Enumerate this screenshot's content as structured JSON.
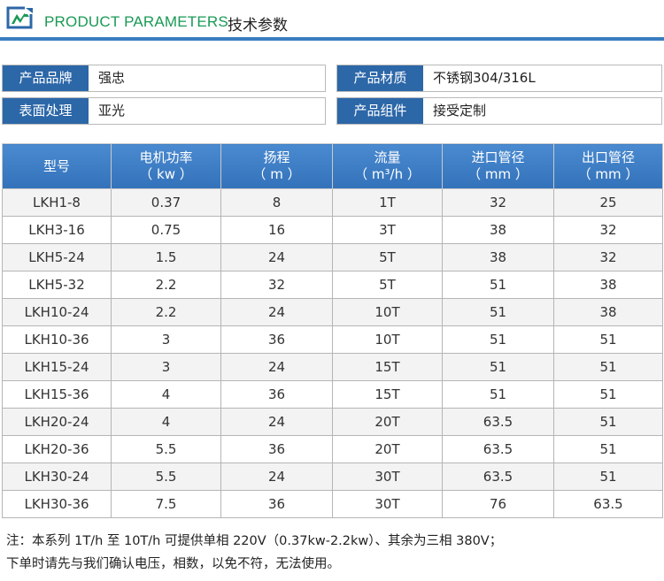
{
  "header": {
    "title_en": "PRODUCT PARAMETERS",
    "title_cn": "技术参数",
    "accent_color": "#1a9a55",
    "rule_color": "#3a7dc0"
  },
  "attributes": [
    {
      "label": "产品品牌",
      "value": "强忠"
    },
    {
      "label": "产品材质",
      "value": "不锈钢304/316L"
    },
    {
      "label": "表面处理",
      "value": "亚光"
    },
    {
      "label": "产品组件",
      "value": "接受定制"
    }
  ],
  "table": {
    "headers": [
      {
        "line1": "型号",
        "line2": ""
      },
      {
        "line1": "电机功率",
        "line2": "（ kw ）"
      },
      {
        "line1": "扬程",
        "line2": "（ m ）"
      },
      {
        "line1": "流量",
        "line2": "（ m³/h ）"
      },
      {
        "line1": "进口管径",
        "line2": "（ mm ）"
      },
      {
        "line1": "出口管径",
        "line2": "（ mm ）"
      }
    ],
    "rows": [
      [
        "LKH1-8",
        "0.37",
        "8",
        "1T",
        "32",
        "25"
      ],
      [
        "LKH3-16",
        "0.75",
        "16",
        "3T",
        "38",
        "32"
      ],
      [
        "LKH5-24",
        "1.5",
        "24",
        "5T",
        "38",
        "32"
      ],
      [
        "LKH5-32",
        "2.2",
        "32",
        "5T",
        "51",
        "38"
      ],
      [
        "LKH10-24",
        "2.2",
        "24",
        "10T",
        "51",
        "38"
      ],
      [
        "LKH10-36",
        "3",
        "36",
        "10T",
        "51",
        "51"
      ],
      [
        "LKH15-24",
        "3",
        "24",
        "15T",
        "51",
        "51"
      ],
      [
        "LKH15-36",
        "4",
        "36",
        "15T",
        "51",
        "51"
      ],
      [
        "LKH20-24",
        "4",
        "24",
        "20T",
        "63.5",
        "51"
      ],
      [
        "LKH20-36",
        "5.5",
        "36",
        "20T",
        "63.5",
        "51"
      ],
      [
        "LKH30-24",
        "5.5",
        "24",
        "30T",
        "63.5",
        "51"
      ],
      [
        "LKH30-36",
        "7.5",
        "36",
        "30T",
        "76",
        "63.5"
      ]
    ]
  },
  "note": {
    "line1": "注：本系列 1T/h 至 10T/h 可提供单相 220V（0.37kw-2.2kw）、其余为三相 380V；",
    "line2": "下单时请先与我们确认电压，相数，以免不符，无法使用。"
  }
}
